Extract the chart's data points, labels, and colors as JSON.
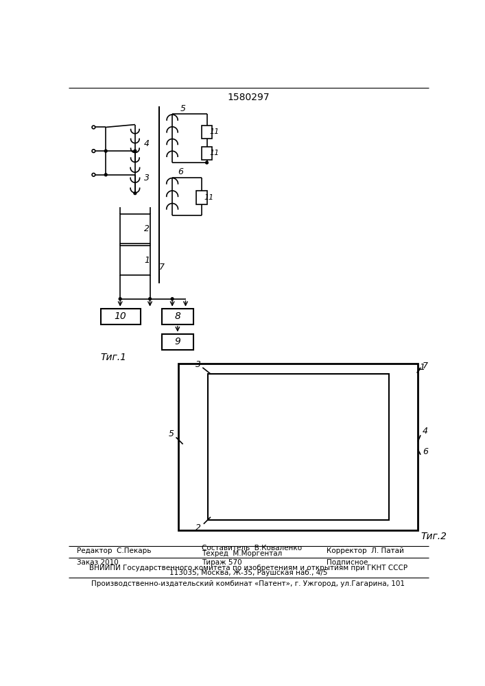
{
  "title": "1580297",
  "fig1_label": "Τиг.1",
  "fig2_label": "Τиг.2",
  "bottom_texts": {
    "editor": "Редактор  С.Пекарь",
    "composer": "Составитель  В.Коваленко",
    "techred": "Техред  М.Моргентал",
    "corrector": "Корректор  Л. Патай",
    "order": "Заказ 2010",
    "tirage": "Тираж 570",
    "subscription": "Подписное",
    "vniiipi": "ВНИИПИ Государственного комитета по изобретениям и открытиям при ГКНТ СССР",
    "address": "113035, Москва, Ж-35, Раушская наб., 4/5",
    "factory": "Производственно-издательский комбинат «Патент», г. Ужгород, ул.Гагарина, 101"
  },
  "bg_color": "#ffffff",
  "line_color": "#000000"
}
